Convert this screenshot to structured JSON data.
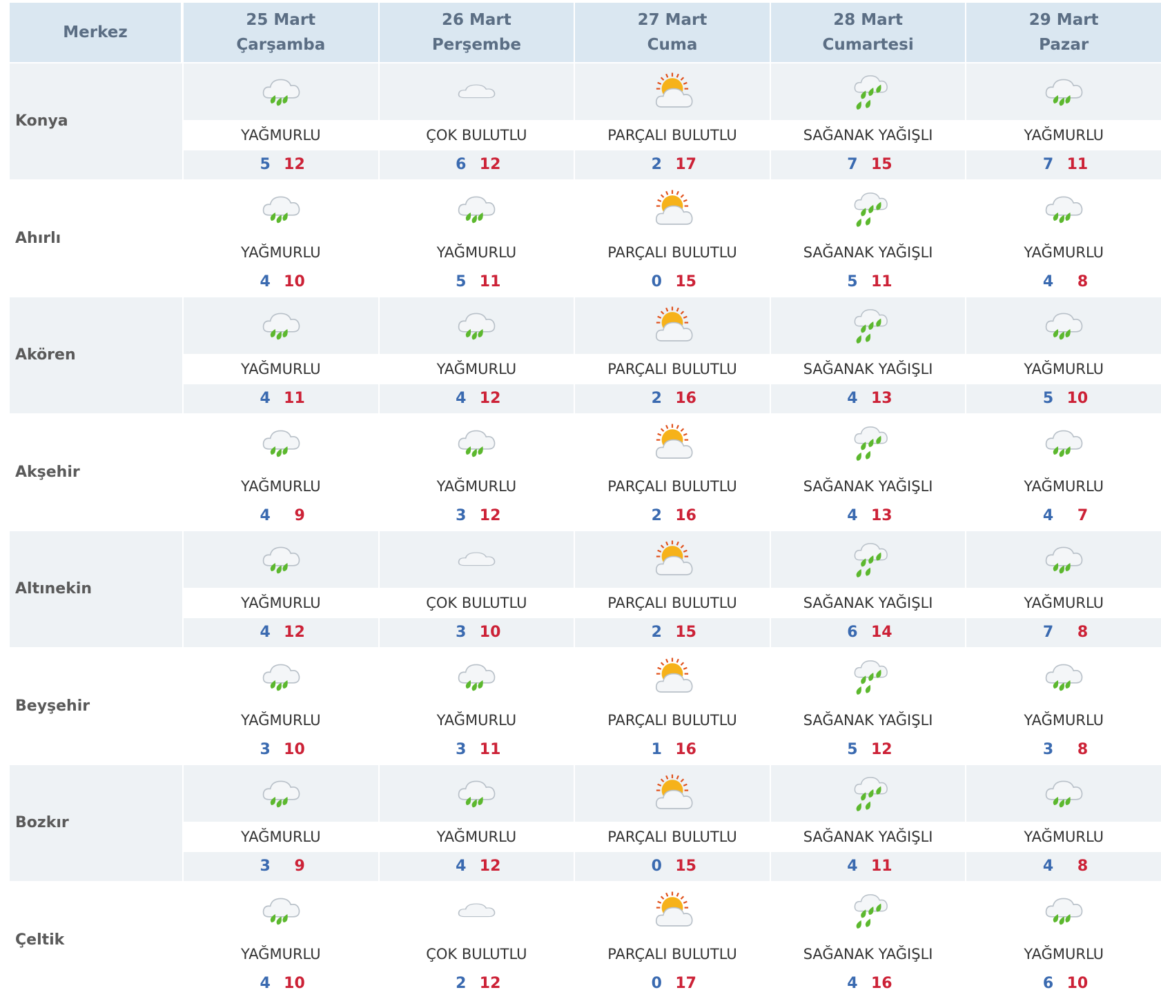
{
  "header": {
    "title": "Merkez",
    "days": [
      {
        "date": "25 Mart",
        "weekday": "Çarşamba"
      },
      {
        "date": "26 Mart",
        "weekday": "Perşembe"
      },
      {
        "date": "27 Mart",
        "weekday": "Cuma"
      },
      {
        "date": "28 Mart",
        "weekday": "Cumartesi"
      },
      {
        "date": "29 Mart",
        "weekday": "Pazar"
      }
    ]
  },
  "rows": [
    {
      "name": "Konya",
      "days": [
        {
          "condition": "YAĞMURLU",
          "min": 5,
          "max": 12
        },
        {
          "condition": "ÇOK BULUTLU",
          "min": 6,
          "max": 12
        },
        {
          "condition": "PARÇALI BULUTLU",
          "min": 2,
          "max": 17
        },
        {
          "condition": "SAĞANAK YAĞIŞLI",
          "min": 7,
          "max": 15
        },
        {
          "condition": "YAĞMURLU",
          "min": 7,
          "max": 11
        }
      ]
    },
    {
      "name": "Ahırlı",
      "days": [
        {
          "condition": "YAĞMURLU",
          "min": 4,
          "max": 10
        },
        {
          "condition": "YAĞMURLU",
          "min": 5,
          "max": 11
        },
        {
          "condition": "PARÇALI BULUTLU",
          "min": 0,
          "max": 15
        },
        {
          "condition": "SAĞANAK YAĞIŞLI",
          "min": 5,
          "max": 11
        },
        {
          "condition": "YAĞMURLU",
          "min": 4,
          "max": 8
        }
      ]
    },
    {
      "name": "Akören",
      "days": [
        {
          "condition": "YAĞMURLU",
          "min": 4,
          "max": 11
        },
        {
          "condition": "YAĞMURLU",
          "min": 4,
          "max": 12
        },
        {
          "condition": "PARÇALI BULUTLU",
          "min": 2,
          "max": 16
        },
        {
          "condition": "SAĞANAK YAĞIŞLI",
          "min": 4,
          "max": 13
        },
        {
          "condition": "YAĞMURLU",
          "min": 5,
          "max": 10
        }
      ]
    },
    {
      "name": "Akşehir",
      "days": [
        {
          "condition": "YAĞMURLU",
          "min": 4,
          "max": 9
        },
        {
          "condition": "YAĞMURLU",
          "min": 3,
          "max": 12
        },
        {
          "condition": "PARÇALI BULUTLU",
          "min": 2,
          "max": 16
        },
        {
          "condition": "SAĞANAK YAĞIŞLI",
          "min": 4,
          "max": 13
        },
        {
          "condition": "YAĞMURLU",
          "min": 4,
          "max": 7
        }
      ]
    },
    {
      "name": "Altınekin",
      "days": [
        {
          "condition": "YAĞMURLU",
          "min": 4,
          "max": 12
        },
        {
          "condition": "ÇOK BULUTLU",
          "min": 3,
          "max": 10
        },
        {
          "condition": "PARÇALI BULUTLU",
          "min": 2,
          "max": 15
        },
        {
          "condition": "SAĞANAK YAĞIŞLI",
          "min": 6,
          "max": 14
        },
        {
          "condition": "YAĞMURLU",
          "min": 7,
          "max": 8
        }
      ]
    },
    {
      "name": "Beyşehir",
      "days": [
        {
          "condition": "YAĞMURLU",
          "min": 3,
          "max": 10
        },
        {
          "condition": "YAĞMURLU",
          "min": 3,
          "max": 11
        },
        {
          "condition": "PARÇALI BULUTLU",
          "min": 1,
          "max": 16
        },
        {
          "condition": "SAĞANAK YAĞIŞLI",
          "min": 5,
          "max": 12
        },
        {
          "condition": "YAĞMURLU",
          "min": 3,
          "max": 8
        }
      ]
    },
    {
      "name": "Bozkır",
      "days": [
        {
          "condition": "YAĞMURLU",
          "min": 3,
          "max": 9
        },
        {
          "condition": "YAĞMURLU",
          "min": 4,
          "max": 12
        },
        {
          "condition": "PARÇALI BULUTLU",
          "min": 0,
          "max": 15
        },
        {
          "condition": "SAĞANAK YAĞIŞLI",
          "min": 4,
          "max": 11
        },
        {
          "condition": "YAĞMURLU",
          "min": 4,
          "max": 8
        }
      ]
    },
    {
      "name": "Çeltik",
      "days": [
        {
          "condition": "YAĞMURLU",
          "min": 4,
          "max": 10
        },
        {
          "condition": "ÇOK BULUTLU",
          "min": 2,
          "max": 12
        },
        {
          "condition": "PARÇALI BULUTLU",
          "min": 0,
          "max": 17
        },
        {
          "condition": "SAĞANAK YAĞIŞLI",
          "min": 4,
          "max": 16
        },
        {
          "condition": "YAĞMURLU",
          "min": 6,
          "max": 10
        }
      ]
    }
  ]
}
